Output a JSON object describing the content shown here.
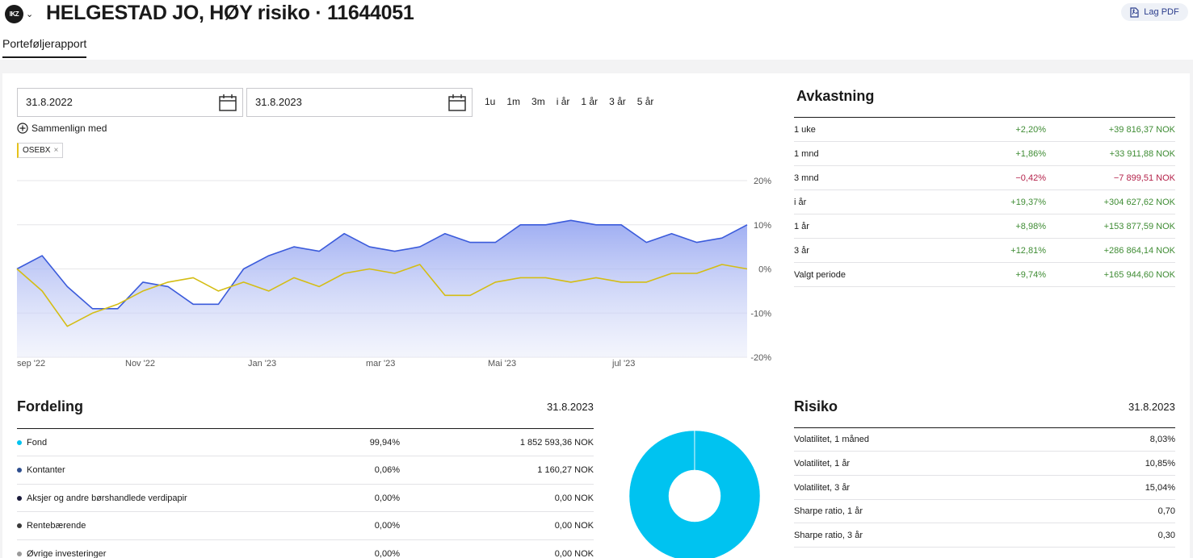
{
  "header": {
    "logo_text": "IKZ",
    "title": "HELGESTAD JO, HØY risiko · 11644051",
    "pdf_label": "Lag PDF",
    "tab_label": "Porteføljerapport"
  },
  "controls": {
    "date_from": "31.8.2022",
    "date_to": "31.8.2023",
    "periods": [
      "1u",
      "1m",
      "3m",
      "i år",
      "1 år",
      "3 år",
      "5 år"
    ],
    "compare_label": "Sammenlign med",
    "benchmark_chip": "OSEBX"
  },
  "chart_data": {
    "type": "line",
    "x_tick_labels": [
      "sep '22",
      "Nov '22",
      "Jan '23",
      "mar '23",
      "Mai '23",
      "jul '23"
    ],
    "y_tick_labels": [
      "20%",
      "10%",
      "0%",
      "-10%",
      "-20%"
    ],
    "ylim": [
      -20,
      20
    ],
    "grid": true,
    "series": [
      {
        "color": "#3b5bdb",
        "values": [
          0,
          3,
          -4,
          -9,
          -9,
          -3,
          -4,
          -8,
          -8,
          0,
          3,
          5,
          4,
          8,
          5,
          4,
          5,
          8,
          6,
          6,
          10,
          10,
          11,
          10,
          10,
          6,
          8,
          6,
          7,
          10
        ]
      },
      {
        "name": "OSEBX",
        "color": "#d4bd14",
        "values": [
          0,
          -5,
          -13,
          -10,
          -8,
          -5,
          -3,
          -2,
          -5,
          -3,
          -5,
          -2,
          -4,
          -1,
          0,
          -1,
          1,
          -6,
          -6,
          -3,
          -2,
          -2,
          -3,
          -2,
          -3,
          -3,
          -1,
          -1,
          1,
          0
        ]
      }
    ]
  },
  "returns": {
    "title": "Avkastning",
    "rows": [
      {
        "label": "1 uke",
        "pct": "+2,20%",
        "amount": "+39 816,37 NOK",
        "sign": "pos"
      },
      {
        "label": "1 mnd",
        "pct": "+1,86%",
        "amount": "+33 911,88 NOK",
        "sign": "pos"
      },
      {
        "label": "3 mnd",
        "pct": "−0,42%",
        "amount": "−7 899,51 NOK",
        "sign": "neg"
      },
      {
        "label": "i år",
        "pct": "+19,37%",
        "amount": "+304 627,62 NOK",
        "sign": "pos"
      },
      {
        "label": "1 år",
        "pct": "+8,98%",
        "amount": "+153 877,59 NOK",
        "sign": "pos"
      },
      {
        "label": "3 år",
        "pct": "+12,81%",
        "amount": "+286 864,14 NOK",
        "sign": "pos"
      },
      {
        "label": "Valgt periode",
        "pct": "+9,74%",
        "amount": "+165 944,60 NOK",
        "sign": "pos"
      }
    ]
  },
  "allocation": {
    "title": "Fordeling",
    "date": "31.8.2023",
    "rows": [
      {
        "label": "Fond",
        "pct": "99,94%",
        "amount": "1 852 593,36 NOK",
        "color": "#00c3f0"
      },
      {
        "label": "Kontanter",
        "pct": "0,06%",
        "amount": "1 160,27 NOK",
        "color": "#2f4f8f"
      },
      {
        "label": "Aksjer og andre børshandlede verdipapir",
        "pct": "0,00%",
        "amount": "0,00 NOK",
        "color": "#1a1a3a"
      },
      {
        "label": "Rentebærende",
        "pct": "0,00%",
        "amount": "0,00 NOK",
        "color": "#3a3a3a"
      },
      {
        "label": "Øvrige investeringer",
        "pct": "0,00%",
        "amount": "0,00 NOK",
        "color": "#9a9a9a"
      }
    ],
    "donut_fractions": [
      0.9994,
      0.0006
    ]
  },
  "risk": {
    "title": "Risiko",
    "date": "31.8.2023",
    "rows": [
      {
        "label": "Volatilitet, 1 måned",
        "value": "8,03%"
      },
      {
        "label": "Volatilitet, 1 år",
        "value": "10,85%"
      },
      {
        "label": "Volatilitet, 3 år",
        "value": "15,04%"
      },
      {
        "label": "Sharpe ratio, 1 år",
        "value": "0,70"
      },
      {
        "label": "Sharpe ratio, 3 år",
        "value": "0,30"
      }
    ]
  }
}
